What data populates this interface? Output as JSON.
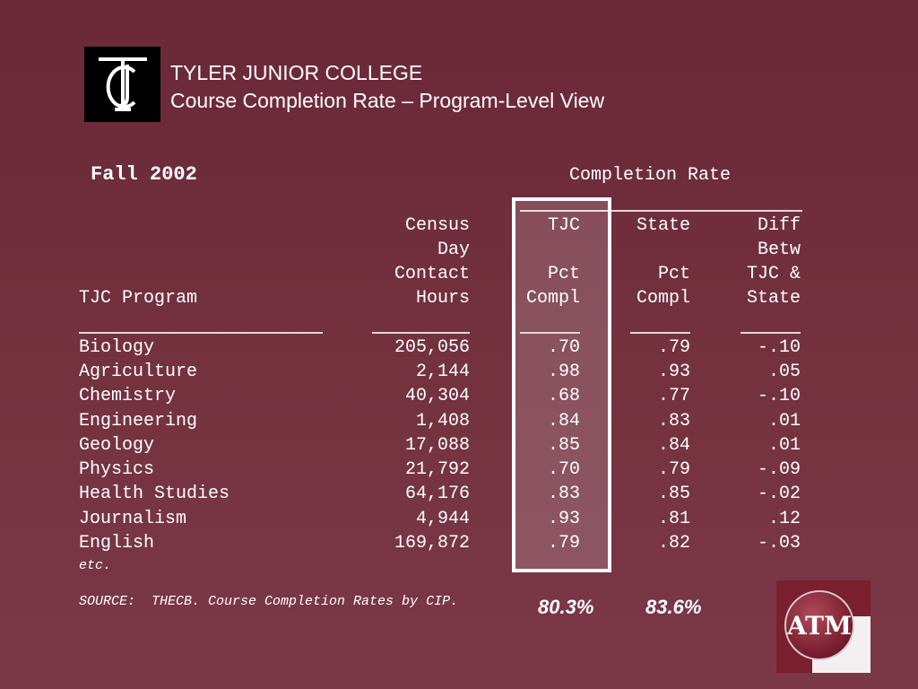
{
  "header": {
    "logo_text": "TJC",
    "title_line1": "TYLER JUNIOR COLLEGE",
    "title_line2": "Course Completion Rate – Program-Level View"
  },
  "table": {
    "term": "Fall 2002",
    "group_header": "Completion Rate",
    "columns": {
      "program": [
        "TJC Program"
      ],
      "hours": [
        "Census",
        "Day",
        "Contact",
        "Hours"
      ],
      "tjc": [
        "TJC",
        "Pct",
        "Compl"
      ],
      "state": [
        "State",
        "Pct",
        "Compl"
      ],
      "diff": [
        "Diff",
        "Betw",
        "TJC &",
        "State"
      ]
    },
    "rows": [
      {
        "program": "Biology",
        "hours": "205,056",
        "tjc": ".70",
        "state": ".79",
        "diff": "-.10"
      },
      {
        "program": "Agriculture",
        "hours": "2,144",
        "tjc": ".98",
        "state": ".93",
        "diff": ".05"
      },
      {
        "program": "Chemistry",
        "hours": "40,304",
        "tjc": ".68",
        "state": ".77",
        "diff": "-.10"
      },
      {
        "program": "Engineering",
        "hours": "1,408",
        "tjc": ".84",
        "state": ".83",
        "diff": ".01"
      },
      {
        "program": "Geology",
        "hours": "17,088",
        "tjc": ".85",
        "state": ".84",
        "diff": ".01"
      },
      {
        "program": "Physics",
        "hours": "21,792",
        "tjc": ".70",
        "state": ".79",
        "diff": "-.09"
      },
      {
        "program": "Health Studies",
        "hours": "64,176",
        "tjc": ".83",
        "state": ".85",
        "diff": "-.02"
      },
      {
        "program": "Journalism",
        "hours": "4,944",
        "tjc": ".93",
        "state": ".81",
        "diff": ".12"
      },
      {
        "program": "English",
        "hours": "169,872",
        "tjc": ".79",
        "state": ".82",
        "diff": "-.03"
      }
    ],
    "etc": "etc.",
    "source": "SOURCE:  THECB. Course Completion Rates by CIP.",
    "totals": {
      "tjc": "80.3%",
      "state": "83.6%"
    }
  },
  "footer_logo": {
    "text": "ATM"
  },
  "colors": {
    "background": "#6a2838",
    "accent": "#ffffff",
    "logo_maroon": "#7a1f2e"
  }
}
